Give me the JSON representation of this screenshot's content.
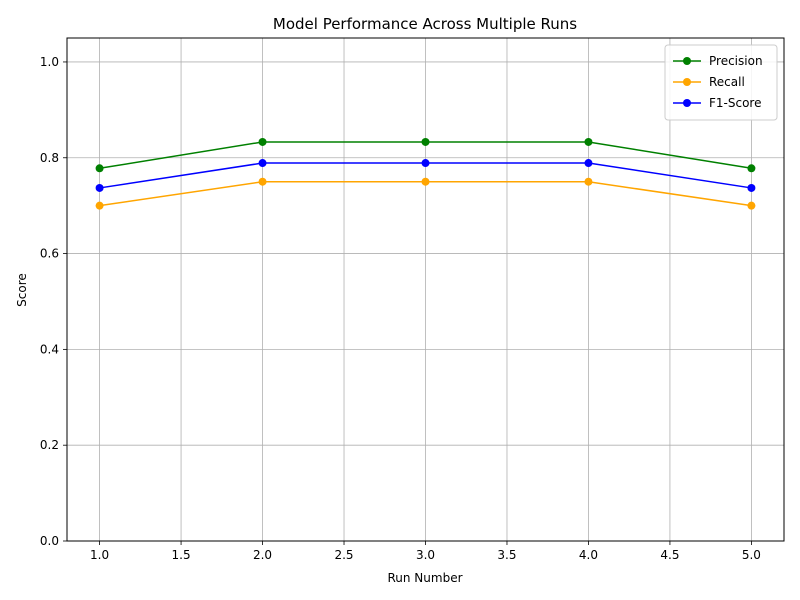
{
  "chart_data": {
    "type": "line",
    "title": "Model Performance Across Multiple Runs",
    "xlabel": "Run Number",
    "ylabel": "Score",
    "x": [
      1,
      2,
      3,
      4,
      5
    ],
    "xlim": [
      0.8,
      5.2
    ],
    "ylim": [
      0.0,
      1.05
    ],
    "xticks": [
      "1.0",
      "1.5",
      "2.0",
      "2.5",
      "3.0",
      "3.5",
      "4.0",
      "4.5",
      "5.0"
    ],
    "yticks": [
      "0.0",
      "0.2",
      "0.4",
      "0.6",
      "0.8",
      "1.0"
    ],
    "grid": true,
    "legend_position": "top-right",
    "series": [
      {
        "name": "Precision",
        "color": "#008000",
        "values": [
          0.778,
          0.833,
          0.833,
          0.833,
          0.778
        ]
      },
      {
        "name": "Recall",
        "color": "#ffa500",
        "values": [
          0.7,
          0.75,
          0.75,
          0.75,
          0.7
        ]
      },
      {
        "name": "F1-Score",
        "color": "#0000ff",
        "values": [
          0.737,
          0.789,
          0.789,
          0.789,
          0.737
        ]
      }
    ]
  }
}
